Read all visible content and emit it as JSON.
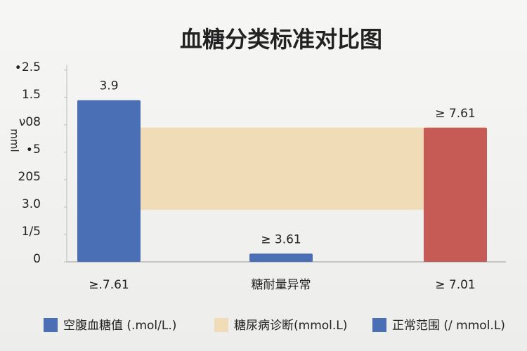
{
  "chart_data": {
    "type": "bar",
    "title": "血糖分类标准对比图",
    "y_label": "mml",
    "categories": [
      "≥.7.61",
      "糖耐量异常",
      "≥ 7.01"
    ],
    "values": [
      5.9,
      0.3,
      4.9
    ],
    "colors": [
      "#4a6fb5",
      "#4a6fb5",
      "#c65a55"
    ],
    "annotations": [
      "3.9",
      "≥ 3.61",
      "≥ 7.61"
    ],
    "band": {
      "name": "糖尿病诊断(mmol.L)",
      "color": "#f1dcb8",
      "range": [
        1.9,
        4.9
      ]
    },
    "legend": [
      {
        "name": "空腹血糖值 (.mol/L.)",
        "color": "#4a6fb5"
      },
      {
        "name": "糖尿病诊断(mmol.L)",
        "color": "#f1dcb8"
      },
      {
        "name": "正常范围 (/ mmol.L)",
        "color": "#4a6fb5"
      }
    ],
    "ylim": [
      0,
      7.2
    ],
    "yticks": [
      0,
      {
        "value": 1,
        "label": "1/5"
      },
      {
        "value": 2,
        "label": "3.0"
      },
      {
        "value": 3,
        "label": "205"
      },
      {
        "value": 4,
        "label": "∙5"
      },
      {
        "value": 5,
        "label": "ν08"
      },
      {
        "value": 6,
        "label": "1.5"
      },
      {
        "value": 7,
        "label": "∙2.5"
      }
    ]
  }
}
